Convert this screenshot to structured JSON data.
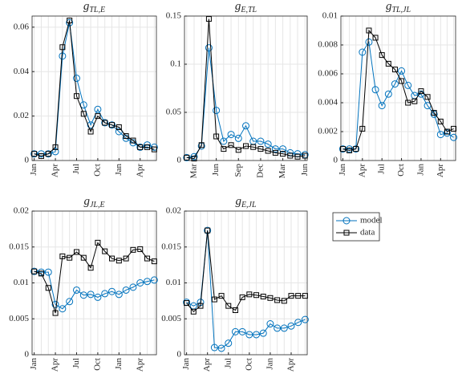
{
  "chart_data": [
    {
      "type": "line",
      "title": "g",
      "title_sub": "TL,E",
      "categories": [
        "Jan",
        null,
        null,
        "Apr",
        null,
        null,
        "Jul",
        null,
        null,
        "Oct",
        null,
        null,
        "Jan",
        null,
        null,
        "Apr",
        null,
        null
      ],
      "series": [
        {
          "name": "model",
          "color": "#0072bd",
          "values": [
            0.003,
            0.003,
            0.003,
            0.004,
            0.047,
            0.062,
            0.037,
            0.025,
            0.016,
            0.023,
            0.017,
            0.016,
            0.013,
            0.01,
            0.008,
            0.006,
            0.007,
            0.006
          ]
        },
        {
          "name": "data",
          "color": "#000000",
          "values": [
            0.003,
            0.002,
            0.003,
            0.006,
            0.051,
            0.063,
            0.029,
            0.021,
            0.013,
            0.02,
            0.017,
            0.016,
            0.015,
            0.011,
            0.009,
            0.006,
            0.006,
            0.005
          ]
        }
      ],
      "ylim": [
        0,
        0.065
      ],
      "yticks": [
        0,
        0.02,
        0.04,
        0.06
      ],
      "grid": true
    },
    {
      "type": "line",
      "title": "g",
      "title_sub": "E,TL",
      "categories": [
        null,
        "Mar",
        null,
        null,
        "Jun",
        null,
        null,
        "Sep",
        null,
        null,
        "Dec",
        null,
        null,
        "Mar",
        null,
        null,
        "Jun"
      ],
      "series": [
        {
          "name": "model",
          "color": "#0072bd",
          "values": [
            0.003,
            0.004,
            0.015,
            0.117,
            0.052,
            0.02,
            0.027,
            0.023,
            0.036,
            0.02,
            0.02,
            0.017,
            0.012,
            0.012,
            0.008,
            0.007,
            0.006
          ]
        },
        {
          "name": "data",
          "color": "#000000",
          "values": [
            0.003,
            0.002,
            0.016,
            0.147,
            0.025,
            0.012,
            0.016,
            0.011,
            0.015,
            0.014,
            0.012,
            0.01,
            0.008,
            0.007,
            0.005,
            0.004,
            0.005
          ]
        }
      ],
      "ylim": [
        0,
        0.15
      ],
      "yticks": [
        0,
        0.05,
        0.1,
        0.15
      ],
      "grid": true
    },
    {
      "type": "line",
      "title": "g",
      "title_sub": "TL,JL",
      "categories": [
        "Jan",
        null,
        null,
        "Apr",
        null,
        null,
        "Jul",
        null,
        null,
        "Oct",
        null,
        null,
        "Jan",
        null,
        null,
        "Apr",
        null,
        null
      ],
      "series": [
        {
          "name": "model",
          "color": "#0072bd",
          "values": [
            0.0008,
            0.0008,
            0.0008,
            0.0075,
            0.0082,
            0.0049,
            0.0038,
            0.0046,
            0.0053,
            0.0062,
            0.0052,
            0.0045,
            0.0046,
            0.0038,
            0.0032,
            0.0018,
            0.0019,
            0.0016
          ]
        },
        {
          "name": "data",
          "color": "#000000",
          "values": [
            0.0008,
            0.0007,
            0.0008,
            0.0022,
            0.009,
            0.0085,
            0.0073,
            0.0067,
            0.0063,
            0.0055,
            0.004,
            0.0041,
            0.0048,
            0.0044,
            0.0033,
            0.0027,
            0.002,
            0.0022
          ]
        }
      ],
      "ylim": [
        0,
        0.01
      ],
      "yticks": [
        0,
        0.002,
        0.004,
        0.006,
        0.008,
        0.01
      ],
      "grid": true
    },
    {
      "type": "line",
      "title": "g",
      "title_sub": "JL,E",
      "categories": [
        "Jan",
        null,
        null,
        "Apr",
        null,
        null,
        "Jul",
        null,
        null,
        "Oct",
        null,
        null,
        "Jan",
        null,
        null,
        "Apr",
        null,
        null
      ],
      "series": [
        {
          "name": "model",
          "color": "#0072bd",
          "values": [
            0.0116,
            0.0115,
            0.0115,
            0.007,
            0.0064,
            0.0074,
            0.009,
            0.0083,
            0.0084,
            0.008,
            0.0085,
            0.0088,
            0.0084,
            0.009,
            0.0094,
            0.01,
            0.0102,
            0.0104
          ]
        },
        {
          "name": "data",
          "color": "#000000",
          "values": [
            0.0116,
            0.0113,
            0.0093,
            0.0058,
            0.0137,
            0.0135,
            0.0143,
            0.0135,
            0.0121,
            0.0156,
            0.0144,
            0.0134,
            0.0131,
            0.0134,
            0.0146,
            0.0147,
            0.0134,
            0.013
          ]
        }
      ],
      "ylim": [
        0,
        0.02
      ],
      "yticks": [
        0,
        0.005,
        0.01,
        0.015,
        0.02
      ],
      "grid": true
    },
    {
      "type": "line",
      "title": "g",
      "title_sub": "E,JL",
      "categories": [
        "Jan",
        null,
        null,
        "Apr",
        null,
        null,
        "Jul",
        null,
        null,
        "Oct",
        null,
        null,
        "Jan",
        null,
        null,
        "Apr",
        null,
        null
      ],
      "series": [
        {
          "name": "model",
          "color": "#0072bd",
          "values": [
            0.0073,
            0.0068,
            0.0073,
            0.0173,
            0.001,
            0.0009,
            0.0016,
            0.0032,
            0.0032,
            0.0028,
            0.0028,
            0.003,
            0.0043,
            0.0037,
            0.0037,
            0.004,
            0.0045,
            0.0049
          ]
        },
        {
          "name": "data",
          "color": "#000000",
          "values": [
            0.0072,
            0.006,
            0.0068,
            0.0173,
            0.0077,
            0.0082,
            0.0068,
            0.0062,
            0.008,
            0.0084,
            0.0083,
            0.0081,
            0.0079,
            0.0076,
            0.0075,
            0.0082,
            0.0082,
            0.0082
          ]
        }
      ],
      "ylim": [
        0,
        0.02
      ],
      "yticks": [
        0,
        0.005,
        0.01,
        0.015,
        0.02
      ],
      "grid": true
    }
  ]
}
